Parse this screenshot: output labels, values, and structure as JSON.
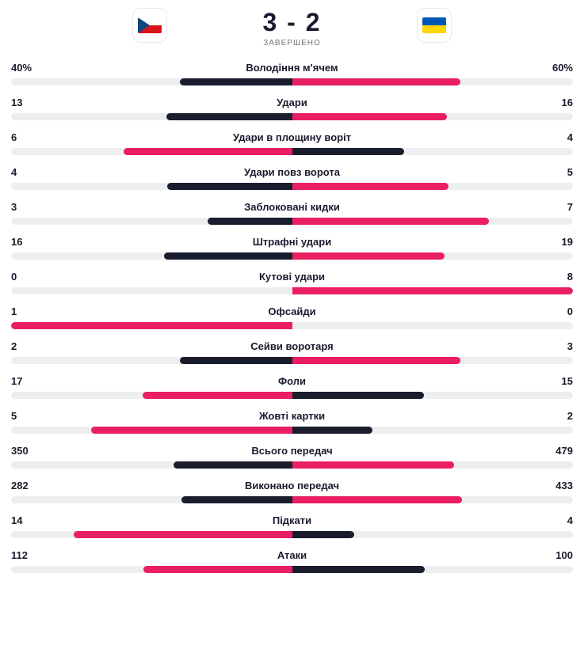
{
  "colors": {
    "home_bar": "#1a1d2e",
    "away_bar": "#e91e63",
    "winner_bar": "#e91e63",
    "loser_bar": "#1a1d2e",
    "track": "#eceef0",
    "text": "#1a1a2e",
    "background": "#ffffff"
  },
  "typography": {
    "score_fontsize": 32,
    "label_fontsize": 13,
    "value_fontsize": 13,
    "status_fontsize": 10
  },
  "header": {
    "score": "3 - 2",
    "status": "ЗАВЕРШЕНО",
    "home_flag": "czech",
    "away_flag": "ukraine"
  },
  "stats": [
    {
      "label": "Володіння м'ячем",
      "home": "40%",
      "away": "60%",
      "home_pct": 40,
      "away_pct": 60,
      "winner": "away"
    },
    {
      "label": "Удари",
      "home": "13",
      "away": "16",
      "home_pct": 44.8,
      "away_pct": 55.2,
      "winner": "away"
    },
    {
      "label": "Удари в площину воріт",
      "home": "6",
      "away": "4",
      "home_pct": 60,
      "away_pct": 40,
      "winner": "home"
    },
    {
      "label": "Удари повз ворота",
      "home": "4",
      "away": "5",
      "home_pct": 44.4,
      "away_pct": 55.6,
      "winner": "away"
    },
    {
      "label": "Заблоковані кидки",
      "home": "3",
      "away": "7",
      "home_pct": 30,
      "away_pct": 70,
      "winner": "away"
    },
    {
      "label": "Штрафні удари",
      "home": "16",
      "away": "19",
      "home_pct": 45.7,
      "away_pct": 54.3,
      "winner": "away"
    },
    {
      "label": "Кутові удари",
      "home": "0",
      "away": "8",
      "home_pct": 0,
      "away_pct": 100,
      "winner": "away"
    },
    {
      "label": "Офсайди",
      "home": "1",
      "away": "0",
      "home_pct": 100,
      "away_pct": 0,
      "winner": "home"
    },
    {
      "label": "Сейви воротаря",
      "home": "2",
      "away": "3",
      "home_pct": 40,
      "away_pct": 60,
      "winner": "away"
    },
    {
      "label": "Фоли",
      "home": "17",
      "away": "15",
      "home_pct": 53.1,
      "away_pct": 46.9,
      "winner": "home"
    },
    {
      "label": "Жовті картки",
      "home": "5",
      "away": "2",
      "home_pct": 71.4,
      "away_pct": 28.6,
      "winner": "home"
    },
    {
      "label": "Всього передач",
      "home": "350",
      "away": "479",
      "home_pct": 42.2,
      "away_pct": 57.8,
      "winner": "away"
    },
    {
      "label": "Виконано передач",
      "home": "282",
      "away": "433",
      "home_pct": 39.4,
      "away_pct": 60.6,
      "winner": "away"
    },
    {
      "label": "Підкати",
      "home": "14",
      "away": "4",
      "home_pct": 77.8,
      "away_pct": 22.2,
      "winner": "home"
    },
    {
      "label": "Атаки",
      "home": "112",
      "away": "100",
      "home_pct": 52.8,
      "away_pct": 47.2,
      "winner": "home"
    }
  ]
}
